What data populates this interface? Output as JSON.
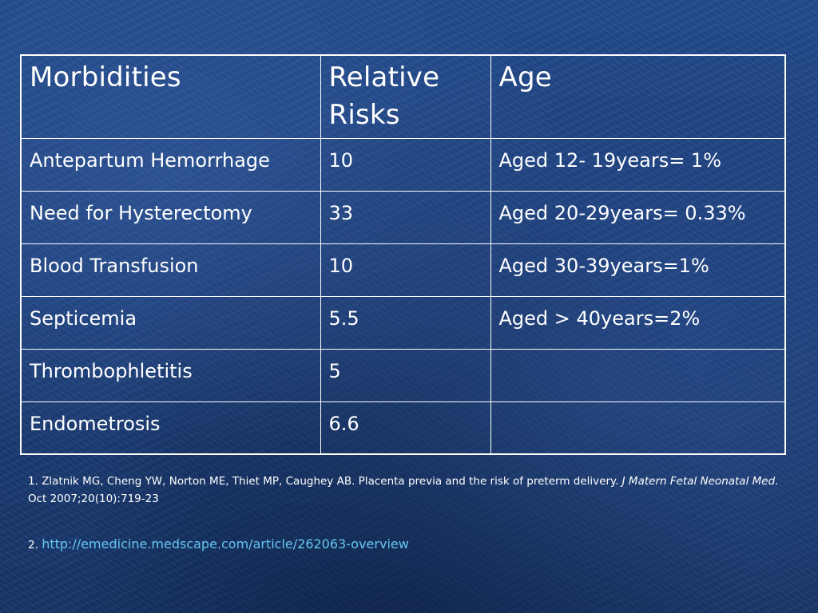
{
  "colors": {
    "background": "#1e3f7c",
    "text": "#ffffff",
    "link": "#66c7f0",
    "table_border": "#ffffff"
  },
  "table": {
    "headers": [
      "Morbidities",
      "Relative Risks",
      "Age"
    ],
    "rows": [
      [
        "Antepartum Hemorrhage",
        "10",
        "Aged 12- 19years= 1%"
      ],
      [
        "Need for Hysterectomy",
        "33",
        "Aged 20-29years= 0.33%"
      ],
      [
        "Blood Transfusion",
        "10",
        "Aged 30-39years=1%"
      ],
      [
        "Septicemia",
        "5.5",
        "Aged > 40years=2%"
      ],
      [
        "Thrombophletitis",
        "5",
        ""
      ],
      [
        "Endometrosis",
        "6.6",
        ""
      ]
    ]
  },
  "references": {
    "ref1": {
      "number": "1.",
      "authors_title": "Zlatnik MG, Cheng YW, Norton ME, Thiet MP, Caughey AB. Placenta previa and the risk of preterm delivery.",
      "journal": "J Matern Fetal Neonatal Med",
      "citation": ". Oct 2007;20(10):719-23"
    },
    "ref2": {
      "number": "2.",
      "url": "http://emedicine.medscape.com/article/262063-overview"
    }
  }
}
